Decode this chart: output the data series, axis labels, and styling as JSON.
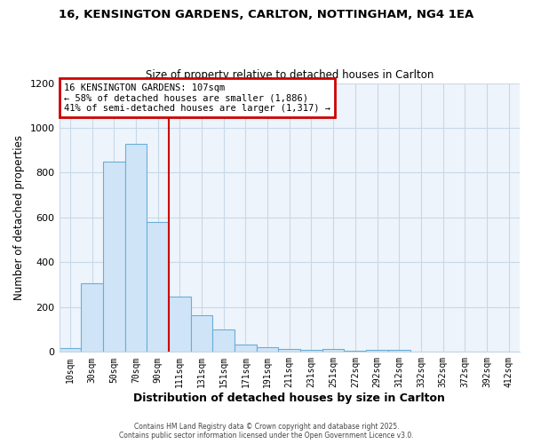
{
  "title_line1": "16, KENSINGTON GARDENS, CARLTON, NOTTINGHAM, NG4 1EA",
  "title_line2": "Size of property relative to detached houses in Carlton",
  "xlabel": "Distribution of detached houses by size in Carlton",
  "ylabel": "Number of detached properties",
  "bar_labels": [
    "10sqm",
    "30sqm",
    "50sqm",
    "70sqm",
    "90sqm",
    "111sqm",
    "131sqm",
    "151sqm",
    "171sqm",
    "191sqm",
    "211sqm",
    "231sqm",
    "251sqm",
    "272sqm",
    "292sqm",
    "312sqm",
    "332sqm",
    "352sqm",
    "372sqm",
    "392sqm",
    "412sqm"
  ],
  "bar_values": [
    18,
    305,
    848,
    930,
    580,
    248,
    163,
    100,
    35,
    20,
    15,
    10,
    15,
    5,
    10,
    8,
    3,
    0,
    0,
    0,
    0
  ],
  "bar_color": "#d0e4f7",
  "bar_edge_color": "#6aaed6",
  "vline_index": 5,
  "vline_color": "#cc0000",
  "ylim": [
    0,
    1200
  ],
  "yticks": [
    0,
    200,
    400,
    600,
    800,
    1000,
    1200
  ],
  "annotation_title": "16 KENSINGTON GARDENS: 107sqm",
  "annotation_line1": "← 58% of detached houses are smaller (1,886)",
  "annotation_line2": "41% of semi-detached houses are larger (1,317) →",
  "annotation_box_color": "#ffffff",
  "annotation_box_edge": "#cc0000",
  "footer_line1": "Contains HM Land Registry data © Crown copyright and database right 2025.",
  "footer_line2": "Contains public sector information licensed under the Open Government Licence v3.0.",
  "grid_color": "#c8d8e8",
  "bg_color": "#eef4fb"
}
